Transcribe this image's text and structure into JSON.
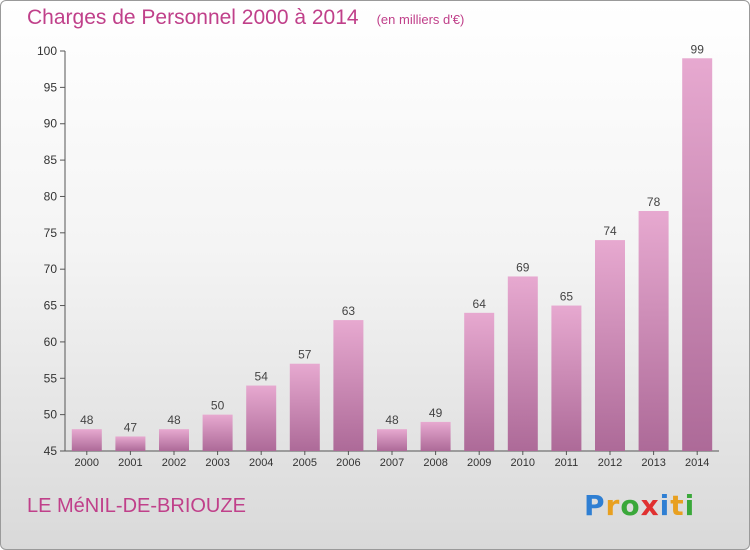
{
  "title": "Charges de Personnel 2000 à 2014",
  "title_unit": "(en milliers d'€)",
  "commune": "LE MéNIL-DE-BRIOUZE",
  "logo": {
    "text": "Proxiti",
    "letters": [
      {
        "char": "P",
        "color": "#2f7fd3"
      },
      {
        "char": "r",
        "color": "#e8a020"
      },
      {
        "char": "o",
        "color": "#3aa83a"
      },
      {
        "char": "x",
        "color": "#e03030"
      },
      {
        "char": "i",
        "color": "#2f7fd3"
      },
      {
        "char": "t",
        "color": "#e8a020"
      },
      {
        "char": "i",
        "color": "#3aa83a"
      }
    ]
  },
  "colors": {
    "bar_top": "#e7a9d0",
    "bar_bottom": "#ad6a98",
    "title": "#c0408a"
  },
  "chart_data": {
    "type": "bar",
    "categories": [
      "2000",
      "2001",
      "2002",
      "2003",
      "2004",
      "2005",
      "2006",
      "2007",
      "2008",
      "2009",
      "2010",
      "2011",
      "2012",
      "2013",
      "2014"
    ],
    "values": [
      48,
      47,
      48,
      50,
      54,
      57,
      63,
      48,
      49,
      64,
      69,
      65,
      74,
      78,
      99
    ],
    "yticks": [
      45,
      50,
      55,
      60,
      65,
      70,
      75,
      80,
      85,
      90,
      95,
      100
    ],
    "ylim": [
      45,
      100
    ],
    "grid": false,
    "data_labels": true
  }
}
